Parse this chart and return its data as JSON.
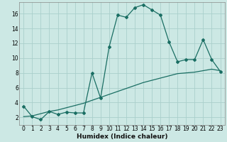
{
  "xlabel": "Humidex (Indice chaleur)",
  "bg_color": "#cce8e4",
  "grid_color": "#aacfcb",
  "line_color": "#1a6e63",
  "xlim_min": -0.5,
  "xlim_max": 23.5,
  "ylim_min": 1.0,
  "ylim_max": 17.5,
  "yticks": [
    2,
    4,
    6,
    8,
    10,
    12,
    14,
    16
  ],
  "xticks": [
    0,
    1,
    2,
    3,
    4,
    5,
    6,
    7,
    8,
    9,
    10,
    11,
    12,
    13,
    14,
    15,
    16,
    17,
    18,
    19,
    20,
    21,
    22,
    23
  ],
  "series1_x": [
    0,
    1,
    2,
    3,
    4,
    5,
    6,
    7,
    8,
    9,
    10,
    11,
    12,
    13,
    14,
    15,
    16,
    17,
    18,
    19,
    20,
    21,
    22,
    23
  ],
  "series1_y": [
    3.5,
    2.1,
    1.7,
    2.8,
    2.4,
    2.7,
    2.6,
    2.6,
    8.0,
    4.6,
    11.5,
    15.8,
    15.5,
    16.8,
    17.2,
    16.5,
    15.8,
    12.2,
    9.5,
    9.8,
    9.8,
    12.5,
    9.8,
    8.2
  ],
  "series2_x": [
    0,
    1,
    2,
    3,
    4,
    5,
    6,
    7,
    8,
    9,
    10,
    11,
    12,
    13,
    14,
    15,
    16,
    17,
    18,
    19,
    20,
    21,
    22,
    23
  ],
  "series2_y": [
    2.1,
    2.2,
    2.5,
    2.8,
    3.0,
    3.3,
    3.6,
    3.9,
    4.3,
    4.7,
    5.1,
    5.5,
    5.9,
    6.3,
    6.7,
    7.0,
    7.3,
    7.6,
    7.9,
    8.0,
    8.1,
    8.3,
    8.5,
    8.3
  ],
  "marker_style": "D",
  "marker_size": 2.0,
  "linewidth": 0.9,
  "xlabel_fontsize": 6.5,
  "tick_fontsize": 5.5
}
